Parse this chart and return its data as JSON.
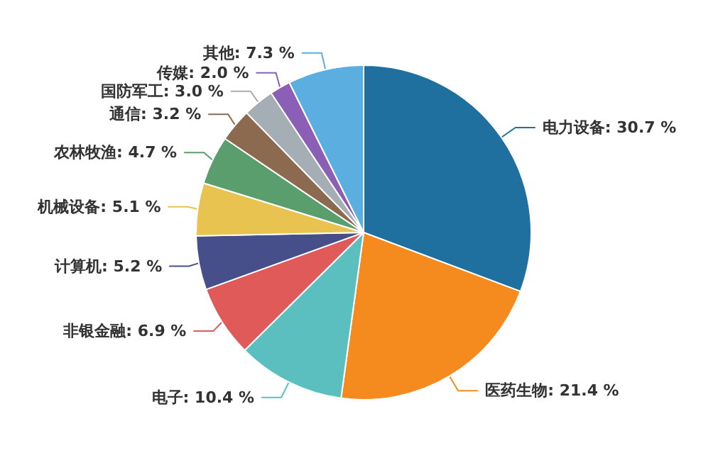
{
  "chart_data": {
    "type": "pie",
    "categories": [
      "电力设备",
      "医药生物",
      "电子",
      "非银金融",
      "计算机",
      "机械设备",
      "农林牧渔",
      "通信",
      "国防军工",
      "传媒",
      "其他"
    ],
    "values": [
      30.7,
      21.4,
      10.4,
      6.9,
      5.2,
      5.1,
      4.7,
      3.2,
      3.0,
      2.0,
      7.3
    ],
    "value_labels": [
      "30.7 %",
      "21.4 %",
      "10.4 %",
      "6.9 %",
      "5.2 %",
      "5.1 %",
      "4.7 %",
      "3.2 %",
      "3.0 %",
      "2.0 %",
      "7.3 %"
    ],
    "colors": [
      "#1f6f9f",
      "#f58a1f",
      "#5bbfc0",
      "#e05a5a",
      "#464f8a",
      "#e8c34f",
      "#5a9e6e",
      "#8b6a4f",
      "#a5adb5",
      "#8a5fb5",
      "#5aaee0"
    ],
    "legend": false
  }
}
